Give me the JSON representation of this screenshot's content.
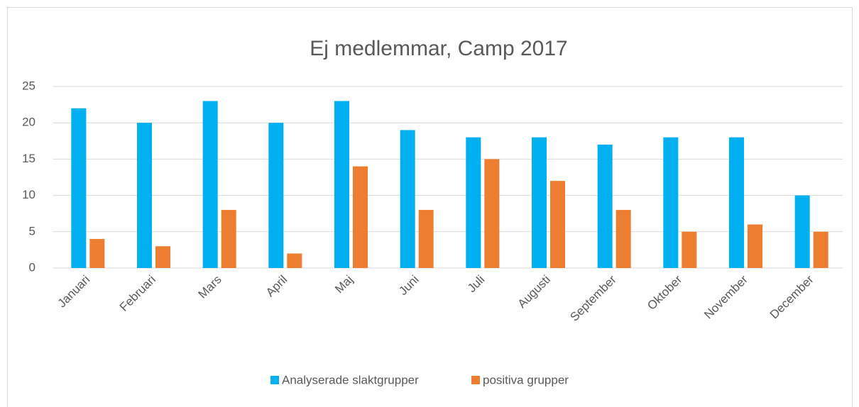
{
  "chart_data": {
    "type": "bar",
    "title": "Ej medlemmar, Camp  2017",
    "categories": [
      "Januari",
      "Februari",
      "Mars",
      "April",
      "Maj",
      "Juni",
      "Juli",
      "Augusti",
      "September",
      "Oktober",
      "November",
      "December"
    ],
    "series": [
      {
        "name": "Analyserade slaktgrupper",
        "color": "#00b0f0",
        "values": [
          22,
          20,
          23,
          20,
          23,
          19,
          18,
          18,
          17,
          18,
          18,
          10
        ]
      },
      {
        "name": "positiva grupper",
        "color": "#ed7d31",
        "values": [
          4,
          3,
          8,
          2,
          14,
          8,
          15,
          12,
          8,
          5,
          6,
          5
        ]
      }
    ],
    "ylim": [
      0,
      25
    ],
    "yticks": [
      0,
      5,
      10,
      15,
      20,
      25
    ],
    "grid": true,
    "legend": "bottom"
  }
}
